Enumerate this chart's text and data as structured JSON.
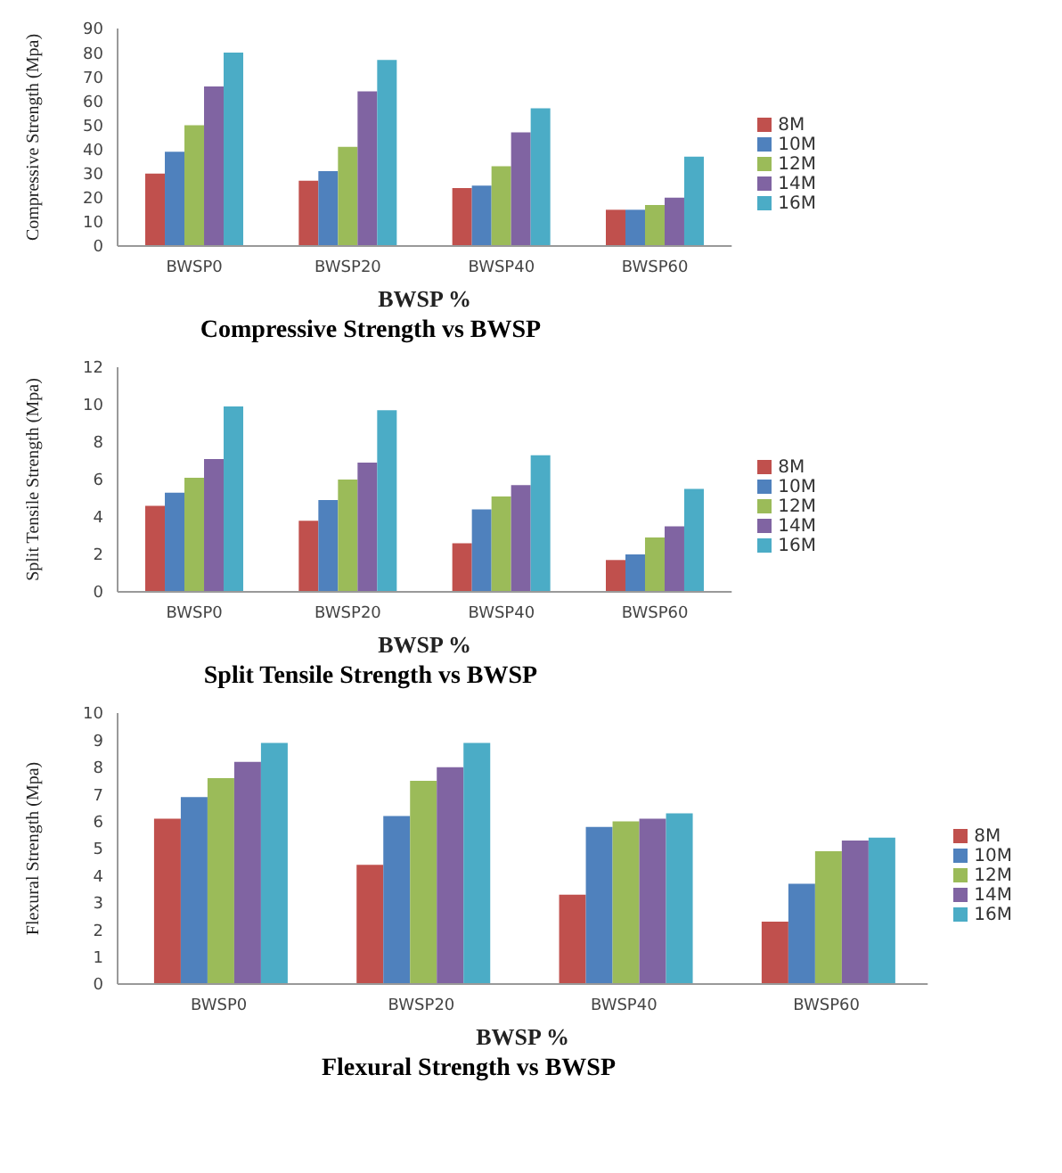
{
  "chart_data": [
    {
      "type": "bar",
      "title": "Compressive Strength vs BWSP",
      "xlabel": "BWSP %",
      "ylabel": "Compressive Strength (Mpa)",
      "categories": [
        "BWSP0",
        "BWSP20",
        "BWSP40",
        "BWSP60"
      ],
      "ylim": [
        0,
        90
      ],
      "yticks": [
        0,
        10,
        20,
        30,
        40,
        50,
        60,
        70,
        80,
        90
      ],
      "legend": "right",
      "grid": false,
      "series": [
        {
          "name": "8M",
          "color": "#c0504d",
          "values": [
            30,
            27,
            24,
            15
          ]
        },
        {
          "name": "10M",
          "color": "#4f81bd",
          "values": [
            39,
            31,
            25,
            15
          ]
        },
        {
          "name": "12M",
          "color": "#9bbb59",
          "values": [
            50,
            41,
            33,
            17
          ]
        },
        {
          "name": "14M",
          "color": "#8064a2",
          "values": [
            66,
            64,
            47,
            20
          ]
        },
        {
          "name": "16M",
          "color": "#4bacc6",
          "values": [
            80,
            77,
            57,
            37
          ]
        }
      ]
    },
    {
      "type": "bar",
      "title": "Split Tensile Strength vs BWSP",
      "xlabel": "BWSP %",
      "ylabel": "Split Tensile Strength (Mpa)",
      "categories": [
        "BWSP0",
        "BWSP20",
        "BWSP40",
        "BWSP60"
      ],
      "ylim": [
        0,
        12
      ],
      "yticks": [
        0,
        2,
        4,
        6,
        8,
        10,
        12
      ],
      "legend": "right",
      "grid": false,
      "series": [
        {
          "name": "8M",
          "color": "#c0504d",
          "values": [
            4.6,
            3.8,
            2.6,
            1.7
          ]
        },
        {
          "name": "10M",
          "color": "#4f81bd",
          "values": [
            5.3,
            4.9,
            4.4,
            2.0
          ]
        },
        {
          "name": "12M",
          "color": "#9bbb59",
          "values": [
            6.1,
            6.0,
            5.1,
            2.9
          ]
        },
        {
          "name": "14M",
          "color": "#8064a2",
          "values": [
            7.1,
            6.9,
            5.7,
            3.5
          ]
        },
        {
          "name": "16M",
          "color": "#4bacc6",
          "values": [
            9.9,
            9.7,
            7.3,
            5.5
          ]
        }
      ]
    },
    {
      "type": "bar",
      "title": "Flexural Strength vs BWSP",
      "xlabel": "BWSP %",
      "ylabel": "Flexural Strength (Mpa)",
      "categories": [
        "BWSP0",
        "BWSP20",
        "BWSP40",
        "BWSP60"
      ],
      "ylim": [
        0,
        10
      ],
      "yticks": [
        0,
        1,
        2,
        3,
        4,
        5,
        6,
        7,
        8,
        9,
        10
      ],
      "legend": "right",
      "grid": false,
      "series": [
        {
          "name": "8M",
          "color": "#c0504d",
          "values": [
            6.1,
            4.4,
            3.3,
            2.3
          ]
        },
        {
          "name": "10M",
          "color": "#4f81bd",
          "values": [
            6.9,
            6.2,
            5.8,
            3.7
          ]
        },
        {
          "name": "12M",
          "color": "#9bbb59",
          "values": [
            7.6,
            7.5,
            6.0,
            4.9
          ]
        },
        {
          "name": "14M",
          "color": "#8064a2",
          "values": [
            8.2,
            8.0,
            6.1,
            5.3
          ]
        },
        {
          "name": "16M",
          "color": "#4bacc6",
          "values": [
            8.9,
            8.9,
            6.3,
            5.4
          ]
        }
      ]
    }
  ]
}
